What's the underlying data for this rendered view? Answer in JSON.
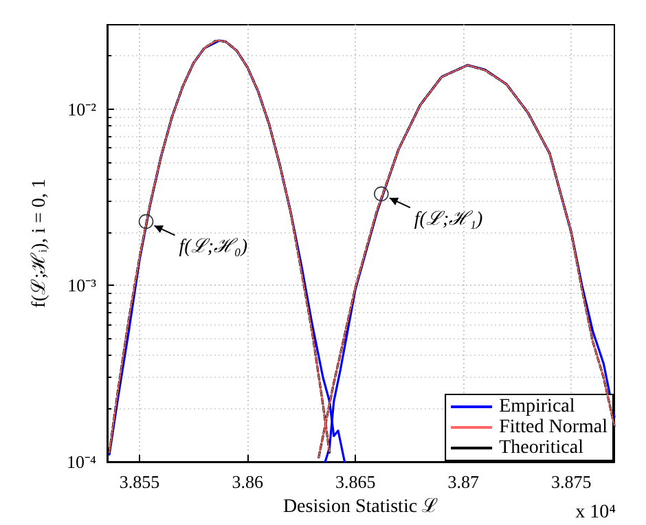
{
  "chart_data": {
    "type": "line",
    "xlabel": "Desision Statistic ℒ",
    "ylabel": "f(ℒ;ℋᵢ), i = 0, 1",
    "log": "y",
    "grid": true,
    "legend": "bottom right",
    "marker": "none",
    "xlim": [
      3.8535,
      3.877
    ],
    "xticks": [
      3.855,
      3.86,
      3.865,
      3.87,
      3.875
    ],
    "ylim": [
      0.0001,
      0.03
    ],
    "yticks": [
      {
        "value": 0.0001,
        "label": "10⁻⁴"
      },
      {
        "value": 0.001,
        "label": "10⁻³"
      },
      {
        "value": 0.01,
        "label": "10⁻²"
      }
    ],
    "annotations": [
      {
        "text": "f(ℒ;ℋ₀)",
        "x": 3.8553,
        "y": 0.0023
      },
      {
        "text": "f(ℒ;ℋ₁)",
        "x": 3.8662,
        "y": 0.0033
      },
      "x 10⁴"
    ],
    "series": [
      {
        "name": "Empirical",
        "color": "#0000ff",
        "line_style": "solid",
        "x": [
          3.8536,
          3.854,
          3.8545,
          3.855,
          3.8555,
          3.856,
          3.8565,
          3.857,
          3.8575,
          3.858,
          3.8587,
          3.859,
          3.8595,
          3.86,
          3.8605,
          3.861,
          3.8615,
          3.862,
          3.8625,
          3.863,
          3.8635,
          3.8638,
          3.864,
          3.8642,
          3.8645
        ],
        "values": [
          0.00011,
          0.00023,
          0.00055,
          0.0014,
          0.0029,
          0.0054,
          0.009,
          0.0134,
          0.0182,
          0.0221,
          0.0244,
          0.024,
          0.0214,
          0.0172,
          0.0125,
          0.0082,
          0.0048,
          0.0026,
          0.0013,
          0.0006,
          0.0003,
          0.00022,
          0.00014,
          0.00015,
          0.0001
        ]
      },
      {
        "color": "#0000ff",
        "line_style": "solid",
        "x": [
          3.8636,
          3.8638,
          3.864,
          3.8643,
          3.865,
          3.866,
          3.867,
          3.868,
          3.869,
          3.8702,
          3.871,
          3.872,
          3.873,
          3.874,
          3.875,
          3.8755,
          3.876,
          3.8765,
          3.877
        ],
        "values": [
          0.0001,
          0.00012,
          0.00022,
          0.00033,
          0.00095,
          0.0026,
          0.0059,
          0.0105,
          0.0152,
          0.0177,
          0.0167,
          0.0138,
          0.0095,
          0.0056,
          0.002,
          0.001,
          0.00055,
          0.00036,
          0.00018
        ]
      },
      {
        "name": "Fitted Normal",
        "color": "#ff6666",
        "line_style": "dotted",
        "x": [
          3.8536,
          3.854,
          3.8545,
          3.855,
          3.8555,
          3.856,
          3.8565,
          3.857,
          3.8575,
          3.858,
          3.8585,
          3.8587,
          3.859,
          3.8595,
          3.86,
          3.8605,
          3.861,
          3.8615,
          3.862,
          3.8625,
          3.863,
          3.8635,
          3.8638
        ],
        "values": [
          0.000113,
          0.000254,
          0.00064,
          0.00144,
          0.00294,
          0.0054,
          0.009,
          0.0134,
          0.0182,
          0.0221,
          0.0242,
          0.0244,
          0.024,
          0.0214,
          0.0172,
          0.0125,
          0.0082,
          0.0048,
          0.0026,
          0.0012,
          0.00054,
          0.00021,
          0.000113
        ]
      },
      {
        "color": "#ff6666",
        "line_style": "dotted",
        "x": [
          3.8633,
          3.864,
          3.865,
          3.866,
          3.867,
          3.868,
          3.869,
          3.8702,
          3.871,
          3.872,
          3.873,
          3.874,
          3.875,
          3.8755,
          3.876,
          3.8765,
          3.877
        ],
        "values": [
          0.000106,
          0.00028,
          0.00097,
          0.00265,
          0.0059,
          0.0105,
          0.0152,
          0.0177,
          0.0166,
          0.0138,
          0.0095,
          0.0056,
          0.002,
          0.00095,
          0.00048,
          0.0003,
          0.00016
        ]
      },
      {
        "name": "Theoritical",
        "color": "#000000",
        "line_style": "dashed",
        "x": [
          3.8536,
          3.854,
          3.8545,
          3.855,
          3.8555,
          3.856,
          3.8565,
          3.857,
          3.8575,
          3.858,
          3.8585,
          3.8587,
          3.859,
          3.8595,
          3.86,
          3.8605,
          3.861,
          3.8615,
          3.862,
          3.8625,
          3.863,
          3.8635,
          3.8638
        ],
        "values": [
          0.000113,
          0.000254,
          0.00064,
          0.00144,
          0.00294,
          0.0054,
          0.009,
          0.0134,
          0.0182,
          0.0221,
          0.0242,
          0.0244,
          0.024,
          0.0214,
          0.0172,
          0.0125,
          0.0082,
          0.0048,
          0.0026,
          0.0012,
          0.00054,
          0.00021,
          0.000113
        ]
      },
      {
        "color": "#000000",
        "line_style": "dashed",
        "x": [
          3.8633,
          3.864,
          3.865,
          3.866,
          3.867,
          3.868,
          3.869,
          3.8702,
          3.871,
          3.872,
          3.873,
          3.874,
          3.875,
          3.8755,
          3.876,
          3.8765,
          3.877
        ],
        "values": [
          0.000106,
          0.00028,
          0.00097,
          0.00265,
          0.0059,
          0.0105,
          0.0152,
          0.0177,
          0.0166,
          0.0138,
          0.0095,
          0.0056,
          0.002,
          0.00095,
          0.00048,
          0.0003,
          0.00016
        ]
      }
    ]
  }
}
